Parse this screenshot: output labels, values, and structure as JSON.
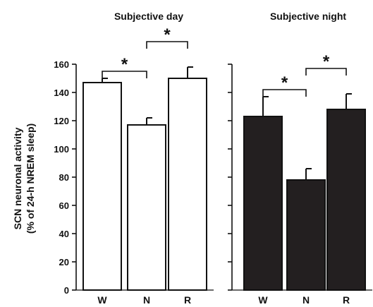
{
  "ylabel_line1": "SCN neuronal activity",
  "ylabel_line2": "(% of 24-h NREM sleep)",
  "significance_marker": "*",
  "chart_data": [
    {
      "type": "bar",
      "title": "Subjective day",
      "categories": [
        "W",
        "N",
        "R"
      ],
      "values": [
        147,
        117,
        150
      ],
      "errors": [
        3,
        5,
        8
      ],
      "bar_color": "#ffffff",
      "edge_color": "#111111",
      "ylim": [
        0,
        160
      ],
      "yticks": [
        0,
        20,
        40,
        60,
        80,
        100,
        120,
        140,
        160
      ],
      "comparisons": [
        {
          "from": 0,
          "to": 1,
          "label": "*"
        },
        {
          "from": 1,
          "to": 2,
          "label": "*"
        }
      ]
    },
    {
      "type": "bar",
      "title": "Subjective night",
      "categories": [
        "W",
        "N",
        "R"
      ],
      "values": [
        123,
        78,
        128
      ],
      "errors": [
        14,
        8,
        11
      ],
      "bar_color": "#231f20",
      "edge_color": "#111111",
      "ylim": [
        0,
        160
      ],
      "comparisons": [
        {
          "from": 0,
          "to": 1,
          "label": "*"
        },
        {
          "from": 1,
          "to": 2,
          "label": "*"
        }
      ]
    }
  ]
}
